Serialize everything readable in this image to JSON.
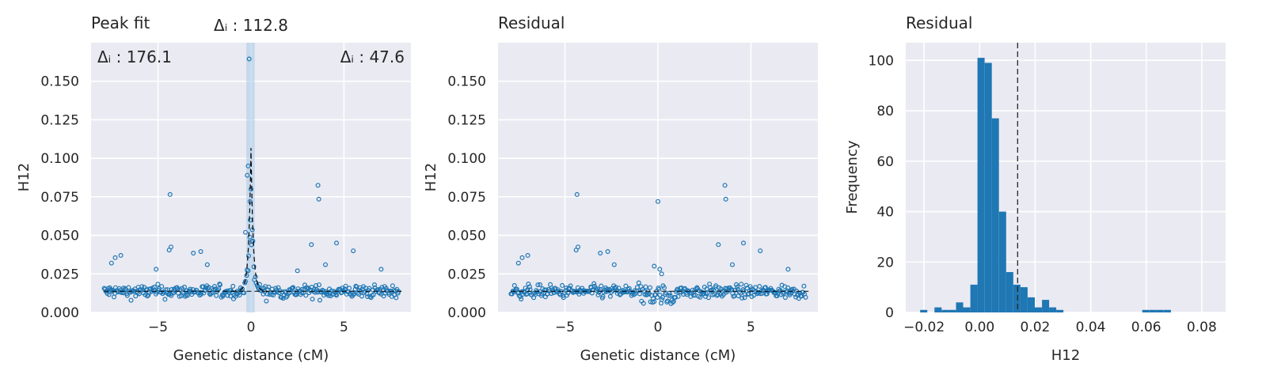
{
  "chart_data": [
    {
      "type": "scatter",
      "title": "Peak fit",
      "xlabel": "Genetic distance (cM)",
      "ylabel": "H12",
      "xlim": [
        -8.6,
        8.6
      ],
      "ylim": [
        0,
        0.175
      ],
      "xticks": [
        -5,
        0,
        5
      ],
      "xtick_labels": [
        "−5",
        "0",
        "5"
      ],
      "yticks": [
        0,
        0.025,
        0.05,
        0.075,
        0.1,
        0.125,
        0.15
      ],
      "ytick_labels": [
        "0.000",
        "0.025",
        "0.050",
        "0.075",
        "0.100",
        "0.125",
        "0.150"
      ],
      "grid": true,
      "annotations": {
        "center": "Δᵢ : 112.8",
        "left": "Δᵢ : 176.1",
        "right": "Δᵢ : 47.6"
      },
      "highlight_band": [
        -0.25,
        0.2
      ],
      "baseline": 0.0137,
      "peak_fit": {
        "center": 0.0,
        "amplitude": 0.093,
        "decay": 0.12,
        "baseline": 0.0137
      },
      "outliers": [
        [
          -4.35,
          0.0765
        ],
        [
          3.6,
          0.0825
        ],
        [
          3.65,
          0.0735
        ],
        [
          -4.4,
          0.0405
        ],
        [
          -4.3,
          0.0425
        ],
        [
          -3.1,
          0.0385
        ],
        [
          -2.7,
          0.0395
        ],
        [
          -2.35,
          0.031
        ],
        [
          3.25,
          0.044
        ],
        [
          4.6,
          0.045
        ],
        [
          5.5,
          0.04
        ],
        [
          -7.3,
          0.0355
        ],
        [
          -7.0,
          0.037
        ],
        [
          -7.5,
          0.032
        ],
        [
          4.0,
          0.031
        ],
        [
          -0.1,
          0.1645
        ],
        [
          -0.15,
          0.095
        ],
        [
          -0.2,
          0.089
        ],
        [
          0.0,
          0.08
        ],
        [
          -0.3,
          0.052
        ],
        [
          -0.05,
          0.072
        ],
        [
          0.05,
          0.046
        ],
        [
          7.0,
          0.028
        ],
        [
          -5.1,
          0.028
        ],
        [
          2.5,
          0.027
        ]
      ],
      "series": [
        {
          "color": "#1f77b4"
        }
      ]
    },
    {
      "type": "scatter",
      "title": "Residual",
      "xlabel": "Genetic distance (cM)",
      "ylabel": "H12",
      "xlim": [
        -8.6,
        8.6
      ],
      "ylim": [
        0,
        0.175
      ],
      "xticks": [
        -5,
        0,
        5
      ],
      "xtick_labels": [
        "−5",
        "0",
        "5"
      ],
      "yticks": [
        0,
        0.025,
        0.05,
        0.075,
        0.1,
        0.125,
        0.15
      ],
      "ytick_labels": [
        "0.000",
        "0.025",
        "0.050",
        "0.075",
        "0.100",
        "0.125",
        "0.150"
      ],
      "grid": true,
      "baseline": 0.0137,
      "outliers": [
        [
          -4.35,
          0.0765
        ],
        [
          3.6,
          0.0825
        ],
        [
          3.65,
          0.0735
        ],
        [
          0.0,
          0.072
        ],
        [
          -4.4,
          0.0405
        ],
        [
          -4.3,
          0.0425
        ],
        [
          -3.1,
          0.0385
        ],
        [
          -2.7,
          0.0395
        ],
        [
          -2.35,
          0.031
        ],
        [
          3.25,
          0.044
        ],
        [
          4.6,
          0.045
        ],
        [
          5.5,
          0.04
        ],
        [
          -7.3,
          0.0355
        ],
        [
          -7.0,
          0.037
        ],
        [
          -7.5,
          0.032
        ],
        [
          4.0,
          0.031
        ],
        [
          -0.2,
          0.03
        ],
        [
          0.1,
          0.028
        ],
        [
          0.2,
          0.025
        ],
        [
          7.0,
          0.028
        ]
      ],
      "series": [
        {
          "color": "#1f77b4"
        }
      ]
    },
    {
      "type": "bar",
      "title": "Residual",
      "xlabel": "H12",
      "ylabel": "Frequency",
      "xlim": [
        -0.0266,
        0.0886
      ],
      "ylim": [
        0,
        107
      ],
      "xticks": [
        -0.02,
        0,
        0.02,
        0.04,
        0.06,
        0.08
      ],
      "xtick_labels": [
        "−0.02",
        "0.00",
        "0.02",
        "0.04",
        "0.06",
        "0.08"
      ],
      "yticks": [
        0,
        20,
        40,
        60,
        80,
        100
      ],
      "ytick_labels": [
        "0",
        "20",
        "40",
        "60",
        "80",
        "100"
      ],
      "grid": true,
      "bin_start": -0.0214,
      "bin_width": 0.00258,
      "values": [
        1,
        0,
        2,
        1,
        1,
        4,
        2,
        11,
        101,
        99,
        77,
        40,
        16,
        11,
        10,
        6,
        2,
        5,
        2,
        1,
        0,
        0,
        0,
        0,
        0,
        0,
        0,
        0,
        0,
        0,
        0,
        1,
        1,
        1,
        1
      ],
      "mean_line": 0.0137,
      "series": [
        {
          "color": "#1f77b4"
        }
      ]
    }
  ]
}
